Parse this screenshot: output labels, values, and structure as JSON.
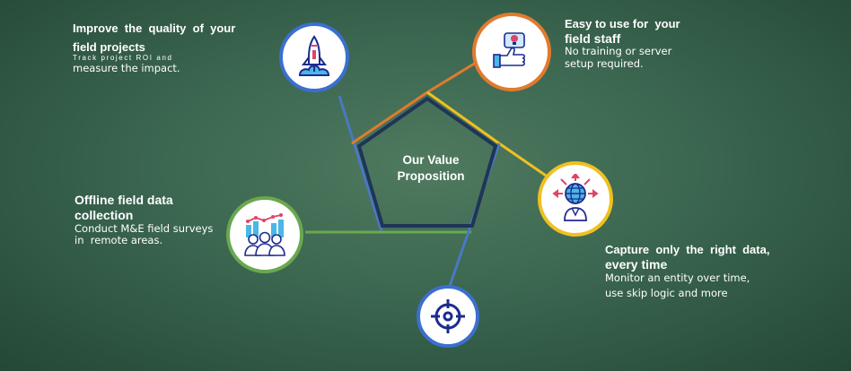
{
  "center": {
    "line1": "Our Value",
    "line2": "Proposition"
  },
  "items": [
    {
      "id": "quality",
      "title_line1": "Improve  the  quality  of  your",
      "title_line2": "field projects",
      "desc_line1": "Track project ROI and",
      "desc_line2": "measure the impact.",
      "icon": "rocket-icon",
      "color": "#3b6fd0"
    },
    {
      "id": "easy",
      "title_line1": "Easy to use for  your",
      "title_line2": "field staff",
      "desc_line1": "No training or server",
      "desc_line2": "setup required.",
      "icon": "thumbs-up-lightbulb-icon",
      "color": "#e07b2e"
    },
    {
      "id": "capture",
      "title_line1": "Capture  only  the  right  data,",
      "title_line2": "every time",
      "desc_line1": "Monitor an entity over time,",
      "desc_line2": "use skip logic and more",
      "icon": "globe-person-icon",
      "color": "#f0c020"
    },
    {
      "id": "offline",
      "title_line1": "Offline field data",
      "title_line2": "collection",
      "desc_line1": "Conduct M&E field surveys",
      "desc_line2": "in  remote areas.",
      "icon": "team-chart-icon",
      "color": "#6aa84f"
    },
    {
      "id": "target",
      "icon": "target-icon",
      "color": "#3b6fd0"
    }
  ]
}
